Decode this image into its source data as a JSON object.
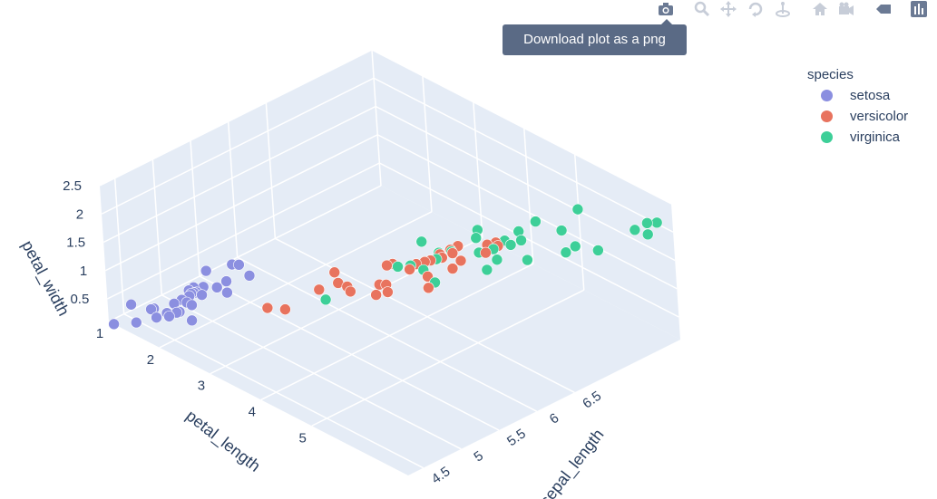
{
  "modebar": {
    "buttons": [
      {
        "name": "camera-icon",
        "label": "Download plot as a png"
      },
      {
        "name": "zoom-icon",
        "label": "Zoom"
      },
      {
        "name": "pan-icon",
        "label": "Pan"
      },
      {
        "name": "orbit-icon",
        "label": "Orbital rotation"
      },
      {
        "name": "turntable-icon",
        "label": "Turntable rotation"
      },
      {
        "name": "home-icon",
        "label": "Reset camera to default"
      },
      {
        "name": "camera-view-icon",
        "label": "Reset camera to last save"
      },
      {
        "name": "spike-icon",
        "label": "Toggle show closest data on hover"
      },
      {
        "name": "plotly-logo-icon",
        "label": "Produced with Plotly"
      }
    ]
  },
  "tooltip": {
    "text": "Download plot as a png"
  },
  "legend": {
    "title": "species",
    "items": [
      {
        "label": "setosa",
        "color": "#8b8fe0"
      },
      {
        "label": "versicolor",
        "color": "#e8735e"
      },
      {
        "label": "virginica",
        "color": "#3dcf98"
      }
    ]
  },
  "chart_data": {
    "type": "scatter3d",
    "axes": {
      "x": {
        "title": "sepal_length",
        "ticks": [
          "4.5",
          "5",
          "5.5",
          "6",
          "6.5"
        ]
      },
      "y": {
        "title": "petal_length",
        "ticks": [
          "1",
          "2",
          "3",
          "4",
          "5"
        ]
      },
      "z": {
        "title": "petal_width",
        "ticks": [
          "0.5",
          "1",
          "1.5",
          "2",
          "2.5"
        ]
      }
    },
    "series": [
      {
        "name": "setosa",
        "color": "#8b8fe0",
        "points": [
          [
            5.1,
            1.4,
            0.2
          ],
          [
            4.9,
            1.4,
            0.2
          ],
          [
            4.7,
            1.3,
            0.2
          ],
          [
            4.6,
            1.5,
            0.2
          ],
          [
            5.0,
            1.4,
            0.2
          ],
          [
            5.4,
            1.7,
            0.4
          ],
          [
            4.6,
            1.4,
            0.3
          ],
          [
            5.0,
            1.5,
            0.2
          ],
          [
            4.4,
            1.4,
            0.2
          ],
          [
            4.9,
            1.5,
            0.1
          ],
          [
            5.4,
            1.5,
            0.2
          ],
          [
            4.8,
            1.6,
            0.2
          ],
          [
            4.8,
            1.4,
            0.1
          ],
          [
            4.3,
            1.1,
            0.1
          ],
          [
            5.8,
            1.2,
            0.2
          ],
          [
            5.7,
            1.5,
            0.4
          ],
          [
            5.4,
            1.3,
            0.4
          ],
          [
            5.1,
            1.4,
            0.3
          ],
          [
            5.7,
            1.7,
            0.3
          ],
          [
            5.1,
            1.5,
            0.3
          ],
          [
            5.4,
            1.7,
            0.2
          ],
          [
            5.1,
            1.5,
            0.4
          ],
          [
            4.6,
            1.0,
            0.2
          ],
          [
            5.1,
            1.7,
            0.5
          ],
          [
            4.8,
            1.9,
            0.2
          ],
          [
            5.0,
            1.6,
            0.2
          ],
          [
            5.0,
            1.6,
            0.4
          ],
          [
            5.2,
            1.5,
            0.2
          ],
          [
            5.2,
            1.4,
            0.2
          ],
          [
            4.7,
            1.6,
            0.2
          ]
        ]
      },
      {
        "name": "versicolor",
        "color": "#e8735e",
        "points": [
          [
            7.0,
            4.7,
            1.4
          ],
          [
            6.4,
            4.5,
            1.5
          ],
          [
            6.9,
            4.9,
            1.5
          ],
          [
            5.5,
            4.0,
            1.3
          ],
          [
            6.5,
            4.6,
            1.5
          ],
          [
            5.7,
            4.5,
            1.3
          ],
          [
            6.3,
            4.7,
            1.6
          ],
          [
            4.9,
            3.3,
            1.0
          ],
          [
            6.6,
            4.6,
            1.3
          ],
          [
            5.2,
            3.9,
            1.4
          ],
          [
            5.0,
            3.5,
            1.0
          ],
          [
            5.9,
            4.2,
            1.5
          ],
          [
            6.0,
            4.0,
            1.0
          ],
          [
            6.1,
            4.7,
            1.4
          ],
          [
            5.6,
            3.6,
            1.3
          ],
          [
            6.7,
            4.4,
            1.4
          ],
          [
            5.6,
            4.5,
            1.5
          ],
          [
            5.8,
            4.1,
            1.0
          ],
          [
            6.2,
            4.5,
            1.5
          ],
          [
            5.6,
            3.9,
            1.1
          ],
          [
            5.9,
            4.8,
            1.8
          ],
          [
            6.1,
            4.0,
            1.3
          ],
          [
            6.3,
            4.9,
            1.5
          ],
          [
            6.1,
            4.7,
            1.2
          ],
          [
            6.4,
            4.3,
            1.3
          ],
          [
            6.6,
            4.4,
            1.4
          ],
          [
            6.8,
            4.8,
            1.4
          ],
          [
            6.7,
            5.0,
            1.7
          ],
          [
            6.0,
            4.5,
            1.5
          ],
          [
            5.7,
            3.5,
            1.0
          ]
        ]
      },
      {
        "name": "virginica",
        "color": "#3dcf98",
        "points": [
          [
            6.3,
            6.0,
            2.5
          ],
          [
            5.8,
            5.1,
            1.9
          ],
          [
            7.1,
            5.9,
            2.1
          ],
          [
            6.3,
            5.6,
            1.8
          ],
          [
            6.5,
            5.8,
            2.2
          ],
          [
            7.6,
            6.6,
            2.1
          ],
          [
            4.9,
            4.5,
            1.7
          ],
          [
            7.3,
            6.3,
            1.8
          ],
          [
            6.7,
            5.8,
            1.8
          ],
          [
            7.2,
            6.1,
            2.5
          ],
          [
            6.5,
            5.1,
            2.0
          ],
          [
            6.4,
            5.3,
            1.9
          ],
          [
            6.8,
            5.5,
            2.1
          ],
          [
            5.7,
            5.0,
            2.0
          ],
          [
            5.8,
            5.1,
            2.4
          ],
          [
            6.4,
            5.3,
            2.3
          ],
          [
            6.5,
            5.5,
            1.8
          ],
          [
            7.7,
            6.7,
            2.2
          ],
          [
            7.7,
            6.9,
            2.3
          ],
          [
            6.0,
            5.0,
            1.5
          ],
          [
            6.9,
            5.7,
            2.3
          ],
          [
            5.6,
            4.9,
            2.0
          ],
          [
            7.7,
            6.7,
            2.0
          ],
          [
            6.3,
            4.9,
            1.8
          ],
          [
            6.7,
            5.7,
            2.1
          ],
          [
            7.2,
            6.0,
            1.8
          ],
          [
            6.2,
            4.8,
            1.8
          ],
          [
            6.1,
            4.9,
            1.8
          ],
          [
            6.4,
            5.6,
            2.1
          ],
          [
            7.2,
            5.8,
            1.6
          ]
        ]
      }
    ],
    "xlim": [
      4.3,
      7.9
    ],
    "ylim": [
      1,
      6.9
    ],
    "zlim": [
      0.1,
      2.5
    ],
    "grid": true,
    "legend_position": "top-right"
  }
}
